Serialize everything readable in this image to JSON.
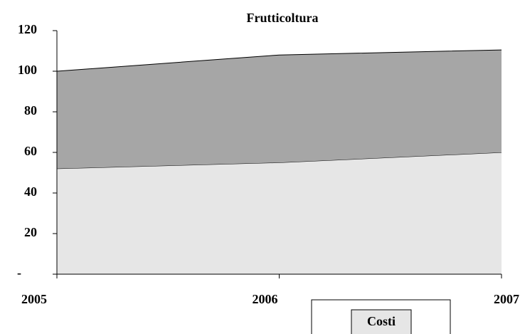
{
  "chart_data": {
    "type": "stacked-area",
    "title": "Frutticoltura",
    "categories": [
      "2005",
      "2006",
      "2007"
    ],
    "series": [
      {
        "name": "Costi",
        "color": "#e6e6e6",
        "values": [
          52,
          55,
          60
        ]
      },
      {
        "color": "#a6a6a6",
        "values": [
          48,
          53,
          50.5
        ]
      }
    ],
    "ylim": [
      0,
      120
    ],
    "yticks": [
      {
        "value": 0,
        "label": "-"
      },
      20,
      40,
      60,
      80,
      100,
      120
    ],
    "legend": "bottom-right"
  }
}
